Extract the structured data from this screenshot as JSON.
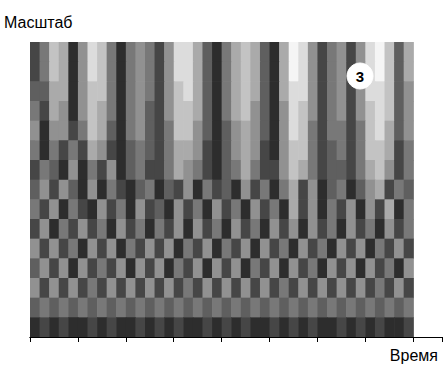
{
  "chart_data": {
    "type": "heatmap",
    "x_label": "Время",
    "y_label": "Масштаб",
    "annotation": "3",
    "tick_labels": false,
    "xlim": [
      0,
      43
    ],
    "xticks": [
      0,
      5,
      10,
      15,
      20,
      25,
      30,
      35,
      40
    ],
    "ylim": [
      0,
      30
    ],
    "yticks": [
      0,
      5,
      10,
      15,
      20,
      25,
      30
    ],
    "zlim": [
      0,
      9
    ],
    "x": [
      0.5,
      1.5,
      2.5,
      3.5,
      4.5,
      5.5,
      6.5,
      7.5,
      8.5,
      9.5,
      10.5,
      11.5,
      12.5,
      13.5,
      14.5,
      15.5,
      16.5,
      17.5,
      18.5,
      19.5,
      20.5,
      21.5,
      22.5,
      23.5,
      24.5,
      25.5,
      26.5,
      27.5,
      28.5,
      29.5,
      30.5,
      31.5,
      32.5,
      33.5,
      34.5,
      35.5,
      36.5,
      37.5,
      38.5,
      39.5
    ],
    "y": [
      29,
      27,
      25,
      23,
      21,
      19,
      17,
      15,
      13,
      11,
      9,
      7,
      5,
      3,
      1
    ],
    "z": [
      [
        2,
        4,
        7,
        6,
        1,
        5,
        8,
        7,
        4,
        1,
        4,
        5,
        4,
        2,
        5,
        8,
        8,
        6,
        3,
        1,
        4,
        6,
        7,
        6,
        3,
        1,
        6,
        9,
        8,
        5,
        2,
        4,
        5,
        2,
        5,
        8,
        9,
        7,
        3,
        6
      ],
      [
        2,
        4,
        7,
        6,
        1,
        5,
        8,
        7,
        4,
        1,
        4,
        5,
        4,
        2,
        5,
        8,
        8,
        6,
        3,
        1,
        4,
        6,
        7,
        6,
        3,
        1,
        6,
        9,
        8,
        5,
        2,
        4,
        5,
        2,
        5,
        8,
        9,
        7,
        3,
        6
      ],
      [
        3,
        3,
        6,
        6,
        1,
        5,
        7,
        7,
        4,
        1,
        4,
        5,
        4,
        2,
        5,
        7,
        8,
        6,
        3,
        1,
        4,
        6,
        7,
        6,
        3,
        1,
        6,
        8,
        8,
        5,
        2,
        4,
        5,
        2,
        5,
        8,
        8,
        7,
        3,
        5
      ],
      [
        4,
        2,
        6,
        5,
        1,
        5,
        7,
        6,
        4,
        1,
        4,
        5,
        3,
        2,
        5,
        7,
        7,
        6,
        3,
        1,
        4,
        6,
        7,
        5,
        3,
        1,
        5,
        8,
        7,
        5,
        2,
        4,
        5,
        2,
        5,
        7,
        8,
        7,
        3,
        5
      ],
      [
        5,
        1,
        5,
        5,
        2,
        4,
        7,
        6,
        3,
        1,
        4,
        5,
        3,
        2,
        4,
        7,
        7,
        5,
        3,
        1,
        3,
        5,
        6,
        5,
        3,
        1,
        5,
        8,
        7,
        4,
        2,
        4,
        4,
        2,
        4,
        7,
        8,
        6,
        3,
        5
      ],
      [
        4,
        1,
        4,
        2,
        4,
        2,
        6,
        5,
        2,
        1,
        3,
        4,
        3,
        2,
        4,
        6,
        6,
        5,
        2,
        1,
        3,
        5,
        6,
        5,
        2,
        1,
        5,
        7,
        7,
        4,
        2,
        3,
        4,
        2,
        4,
        7,
        7,
        6,
        2,
        4
      ],
      [
        2,
        4,
        3,
        1,
        5,
        1,
        4,
        2,
        5,
        1,
        3,
        4,
        2,
        2,
        4,
        6,
        5,
        4,
        2,
        1,
        3,
        4,
        6,
        4,
        2,
        2,
        5,
        7,
        6,
        4,
        2,
        3,
        3,
        2,
        4,
        6,
        7,
        5,
        2,
        4
      ],
      [
        3,
        5,
        2,
        5,
        3,
        1,
        5,
        1,
        4,
        2,
        1,
        3,
        4,
        1,
        3,
        2,
        5,
        1,
        4,
        2,
        3,
        1,
        5,
        2,
        4,
        1,
        4,
        6,
        2,
        5,
        1,
        3,
        4,
        1,
        3,
        5,
        6,
        2,
        4,
        3
      ],
      [
        4,
        2,
        5,
        1,
        4,
        2,
        1,
        5,
        2,
        4,
        1,
        5,
        2,
        3,
        1,
        5,
        2,
        4,
        1,
        5,
        2,
        4,
        1,
        5,
        2,
        4,
        1,
        6,
        2,
        5,
        1,
        4,
        2,
        5,
        1,
        5,
        2,
        6,
        1,
        4
      ],
      [
        2,
        5,
        1,
        4,
        2,
        5,
        2,
        4,
        1,
        5,
        2,
        4,
        1,
        4,
        2,
        5,
        1,
        5,
        2,
        4,
        1,
        5,
        2,
        4,
        1,
        5,
        2,
        5,
        1,
        5,
        2,
        4,
        1,
        5,
        2,
        4,
        1,
        5,
        2,
        4
      ],
      [
        5,
        2,
        5,
        2,
        4,
        1,
        5,
        2,
        5,
        1,
        4,
        2,
        5,
        2,
        5,
        1,
        4,
        2,
        5,
        1,
        4,
        2,
        5,
        1,
        5,
        2,
        4,
        1,
        5,
        2,
        4,
        1,
        5,
        2,
        5,
        1,
        4,
        2,
        5,
        2
      ],
      [
        3,
        5,
        2,
        5,
        1,
        5,
        2,
        4,
        2,
        5,
        1,
        5,
        2,
        5,
        1,
        4,
        2,
        5,
        1,
        5,
        2,
        5,
        1,
        4,
        2,
        5,
        1,
        5,
        2,
        4,
        1,
        5,
        2,
        5,
        1,
        5,
        2,
        4,
        1,
        5
      ],
      [
        5,
        2,
        5,
        2,
        5,
        2,
        4,
        2,
        5,
        2,
        5,
        2,
        5,
        2,
        5,
        2,
        4,
        2,
        5,
        2,
        5,
        2,
        5,
        2,
        5,
        2,
        4,
        2,
        5,
        2,
        5,
        2,
        5,
        2,
        5,
        2,
        4,
        2,
        5,
        2
      ],
      [
        3,
        4,
        3,
        4,
        3,
        4,
        3,
        4,
        3,
        4,
        3,
        4,
        3,
        4,
        3,
        4,
        3,
        4,
        3,
        4,
        3,
        4,
        3,
        4,
        3,
        4,
        3,
        4,
        3,
        4,
        3,
        4,
        3,
        4,
        3,
        4,
        3,
        4,
        3,
        4
      ],
      [
        1,
        2,
        1,
        2,
        1,
        1,
        2,
        1,
        2,
        1,
        1,
        2,
        1,
        2,
        1,
        2,
        1,
        1,
        2,
        1,
        2,
        1,
        2,
        1,
        1,
        2,
        1,
        2,
        1,
        2,
        1,
        1,
        2,
        1,
        2,
        1,
        2,
        1,
        1,
        2
      ]
    ]
  }
}
